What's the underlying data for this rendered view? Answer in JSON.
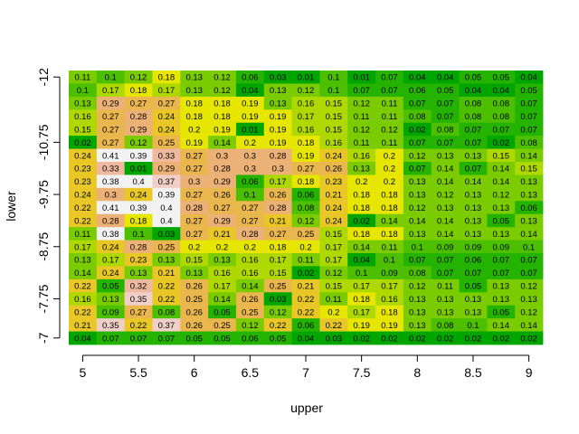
{
  "chart_data": {
    "type": "heatmap",
    "title": "",
    "xlabel": "upper",
    "ylabel": "lower",
    "x": [
      5,
      5.25,
      5.5,
      5.75,
      6,
      6.25,
      6.5,
      6.75,
      7,
      7.25,
      7.5,
      7.75,
      8,
      8.25,
      8.5,
      8.75,
      9
    ],
    "y": [
      -12,
      -11.75,
      -11.5,
      -11.25,
      -11,
      -10.75,
      -10.5,
      -10.25,
      -10,
      -9.75,
      -9.5,
      -9.25,
      -9,
      -8.75,
      -8.5,
      -8.25,
      -8,
      -7.75,
      -7.5,
      -7.25,
      -7
    ],
    "xlim": [
      4.875,
      9.125
    ],
    "ylim": [
      -12.125,
      -6.875
    ],
    "x_ticks": [
      "5",
      "5.5",
      "6",
      "6.5",
      "7",
      "7.5",
      "8",
      "8.5",
      "9"
    ],
    "x_tick_values": [
      5,
      5.5,
      6,
      6.5,
      7,
      7.5,
      8,
      8.5,
      9
    ],
    "y_ticks": [
      "-12",
      "-10.75",
      "-9.75",
      "-8.75",
      "-7.75",
      "-7"
    ],
    "y_tick_values": [
      -12,
      -10.75,
      -9.75,
      -8.75,
      -7.75,
      -7
    ],
    "y_axis_reversed": true,
    "grid": false,
    "legend": "none",
    "colormap": "terrain",
    "values": [
      [
        0.11,
        0.1,
        0.12,
        0.18,
        0.13,
        0.12,
        0.06,
        0.03,
        0.01,
        0.1,
        0.01,
        0.07,
        0.04,
        0.04,
        0.05,
        0.05,
        0.04
      ],
      [
        0.1,
        0.17,
        0.18,
        0.17,
        0.13,
        0.12,
        0.04,
        0.13,
        0.12,
        0.1,
        0.07,
        0.07,
        0.06,
        0.05,
        0.04,
        0.04,
        0.05
      ],
      [
        0.13,
        0.29,
        0.27,
        0.27,
        0.18,
        0.18,
        0.19,
        0.13,
        0.16,
        0.15,
        0.12,
        0.11,
        0.07,
        0.07,
        0.08,
        0.08,
        0.07
      ],
      [
        0.16,
        0.27,
        0.28,
        0.24,
        0.18,
        0.18,
        0.19,
        0.19,
        0.17,
        0.15,
        0.11,
        0.11,
        0.08,
        0.07,
        0.08,
        0.08,
        0.07
      ],
      [
        0.15,
        0.27,
        0.29,
        0.24,
        0.2,
        0.19,
        0.01,
        0.19,
        0.16,
        0.15,
        0.12,
        0.12,
        0.02,
        0.08,
        0.07,
        0.07,
        0.07
      ],
      [
        0.02,
        0.27,
        0.12,
        0.25,
        0.19,
        0.14,
        0.2,
        0.19,
        0.18,
        0.16,
        0.11,
        0.11,
        0.07,
        0.07,
        0.07,
        0.02,
        0.08
      ],
      [
        0.24,
        0.41,
        0.39,
        0.33,
        0.27,
        0.3,
        0.3,
        0.28,
        0.19,
        0.24,
        0.16,
        0.2,
        0.12,
        0.13,
        0.13,
        0.15,
        0.14
      ],
      [
        0.23,
        0.33,
        0.01,
        0.29,
        0.27,
        0.28,
        0.3,
        0.3,
        0.27,
        0.26,
        0.13,
        0.2,
        0.07,
        0.14,
        0.07,
        0.14,
        0.15
      ],
      [
        0.23,
        0.38,
        0.4,
        0.37,
        0.3,
        0.29,
        0.06,
        0.17,
        0.18,
        0.23,
        0.2,
        0.2,
        0.13,
        0.14,
        0.14,
        0.14,
        0.13
      ],
      [
        0.24,
        0.3,
        0.24,
        0.39,
        0.27,
        0.26,
        0.1,
        0.26,
        0.06,
        0.21,
        0.18,
        0.18,
        0.13,
        0.12,
        0.13,
        0.12,
        0.13
      ],
      [
        0.22,
        0.41,
        0.39,
        0.4,
        0.28,
        0.27,
        0.27,
        0.28,
        0.08,
        0.24,
        0.18,
        0.18,
        0.12,
        0.13,
        0.13,
        0.13,
        0.06
      ],
      [
        0.22,
        0.28,
        0.18,
        0.4,
        0.27,
        0.29,
        0.27,
        0.21,
        0.12,
        0.24,
        0.02,
        0.14,
        0.14,
        0.14,
        0.13,
        0.05,
        0.13
      ],
      [
        0.11,
        0.38,
        0.1,
        0.03,
        0.27,
        0.21,
        0.28,
        0.27,
        0.25,
        0.15,
        0.18,
        0.18,
        0.13,
        0.14,
        0.13,
        0.13,
        0.14
      ],
      [
        0.17,
        0.24,
        0.28,
        0.25,
        0.2,
        0.2,
        0.2,
        0.18,
        0.2,
        0.17,
        0.14,
        0.11,
        0.1,
        0.09,
        0.09,
        0.09,
        0.1
      ],
      [
        0.13,
        0.17,
        0.23,
        0.13,
        0.15,
        0.13,
        0.16,
        0.17,
        0.11,
        0.17,
        0.04,
        0.1,
        0.07,
        0.07,
        0.06,
        0.07,
        0.07
      ],
      [
        0.14,
        0.24,
        0.13,
        0.21,
        0.13,
        0.16,
        0.16,
        0.15,
        0.02,
        0.12,
        0.1,
        0.09,
        0.08,
        0.07,
        0.07,
        0.07,
        0.07
      ],
      [
        0.22,
        0.05,
        0.32,
        0.22,
        0.26,
        0.17,
        0.14,
        0.25,
        0.21,
        0.15,
        0.17,
        0.17,
        0.12,
        0.11,
        0.05,
        0.13,
        0.12
      ],
      [
        0.16,
        0.13,
        0.35,
        0.22,
        0.25,
        0.14,
        0.26,
        0.03,
        0.22,
        0.11,
        0.18,
        0.16,
        0.13,
        0.13,
        0.13,
        0.13,
        0.13
      ],
      [
        0.22,
        0.09,
        0.27,
        0.08,
        0.26,
        0.05,
        0.25,
        0.12,
        0.22,
        0.2,
        0.17,
        0.18,
        0.13,
        0.13,
        0.13,
        0.05,
        0.12
      ],
      [
        0.21,
        0.35,
        0.22,
        0.37,
        0.26,
        0.25,
        0.12,
        0.22,
        0.06,
        0.22,
        0.19,
        0.19,
        0.13,
        0.08,
        0.1,
        0.14,
        0.14
      ],
      [
        0.04,
        0.07,
        0.07,
        0.07,
        0.05,
        0.05,
        0.06,
        0.05,
        0.04,
        0.03,
        0.02,
        0.02,
        0.02,
        0.02,
        0.02,
        0.02,
        0.02
      ]
    ]
  }
}
